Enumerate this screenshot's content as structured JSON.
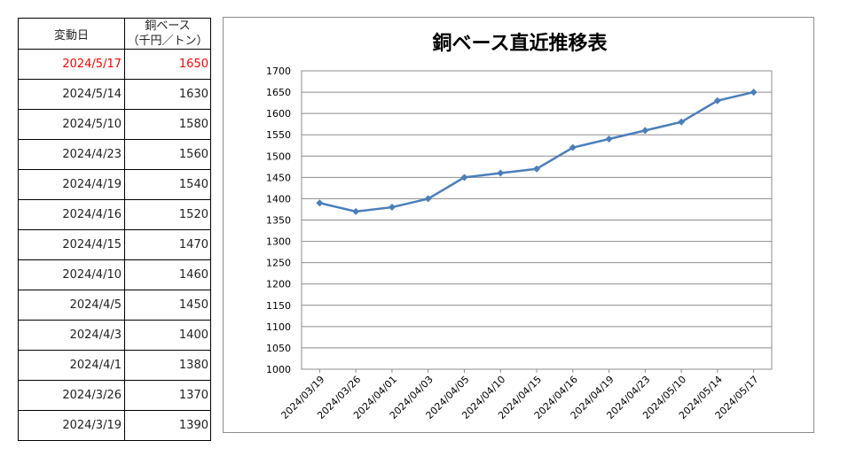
{
  "table": {
    "header": {
      "date": "変動日",
      "price_line1": "銅ベース",
      "price_line2": "（千円／トン）"
    },
    "rows": [
      {
        "date": "2024/5/17",
        "price": "1650"
      },
      {
        "date": "2024/5/14",
        "price": "1630"
      },
      {
        "date": "2024/5/10",
        "price": "1580"
      },
      {
        "date": "2024/4/23",
        "price": "1560"
      },
      {
        "date": "2024/4/19",
        "price": "1540"
      },
      {
        "date": "2024/4/16",
        "price": "1520"
      },
      {
        "date": "2024/4/15",
        "price": "1470"
      },
      {
        "date": "2024/4/10",
        "price": "1460"
      },
      {
        "date": "2024/4/5",
        "price": "1450"
      },
      {
        "date": "2024/4/3",
        "price": "1400"
      },
      {
        "date": "2024/4/1",
        "price": "1380"
      },
      {
        "date": "2024/3/26",
        "price": "1370"
      },
      {
        "date": "2024/3/19",
        "price": "1390"
      }
    ],
    "highlight_color": "#ff0000"
  },
  "chart_data": {
    "type": "line",
    "title": "銅ベース直近推移表",
    "x": [
      "2024/03/19",
      "2024/03/26",
      "2024/04/01",
      "2024/04/03",
      "2024/04/05",
      "2024/04/10",
      "2024/04/15",
      "2024/04/16",
      "2024/04/19",
      "2024/04/23",
      "2024/05/10",
      "2024/05/14",
      "2024/05/17"
    ],
    "series": [
      {
        "values": [
          1390,
          1370,
          1380,
          1400,
          1450,
          1460,
          1470,
          1520,
          1540,
          1560,
          1580,
          1630,
          1650
        ]
      }
    ],
    "ylim": [
      1000,
      1700
    ],
    "ytick_step": 50,
    "grid": "horizontal",
    "legend": "none",
    "line_color": "#4a7ebb",
    "marker": "diamond"
  }
}
